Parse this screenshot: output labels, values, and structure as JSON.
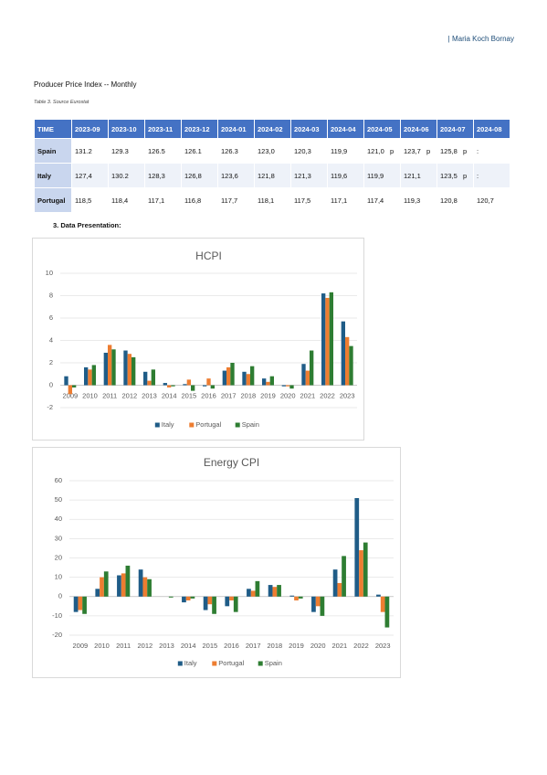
{
  "header": {
    "author": "| Maria Koch Bornay"
  },
  "title": "Producer Price Index -- Monthly",
  "caption": "Table 3. Source Eurostat",
  "table": {
    "columns": [
      "TIME",
      "2023-09",
      "2023-10",
      "2023-11",
      "2023-12",
      "2024-01",
      "2024-02",
      "2024-03",
      "2024-04",
      "2024-05",
      "2024-06",
      "2024-07",
      "2024-08"
    ],
    "rows": [
      {
        "label": "Spain",
        "cells": [
          "131.2",
          "129.3",
          "126.5",
          "126.1",
          "126.3",
          "123,0",
          "120,3",
          "119,9",
          {
            "value": "121,0",
            "flag": "p"
          },
          {
            "value": "123,7",
            "flag": "p"
          },
          {
            "value": "125,8",
            "flag": "p"
          },
          ":"
        ]
      },
      {
        "label": "Italy",
        "cells": [
          "127,4",
          "130.2",
          "128,3",
          "126,8",
          "123,6",
          "121,8",
          "121,3",
          "119,6",
          "119,9",
          "121,1",
          {
            "value": "123,5",
            "flag": "p"
          },
          ":"
        ]
      },
      {
        "label": "Portugal",
        "cells": [
          "118,5",
          "118,4",
          "117,1",
          "116,8",
          "117,7",
          "118,1",
          "117,5",
          "117,1",
          "117,4",
          "119,3",
          "120,8",
          "120,7"
        ]
      }
    ]
  },
  "section": "3.  Data Presentation:",
  "chart_data": [
    {
      "type": "bar",
      "title": "HCPI",
      "categories": [
        "2009",
        "2010",
        "2011",
        "2012",
        "2013",
        "2014",
        "2015",
        "2016",
        "2017",
        "2018",
        "2019",
        "2020",
        "2021",
        "2022",
        "2023"
      ],
      "series": [
        {
          "name": "Italy",
          "color": "#1f5c87",
          "values": [
            0.8,
            1.6,
            2.9,
            3.1,
            1.2,
            0.2,
            0.1,
            -0.1,
            1.3,
            1.2,
            0.6,
            -0.1,
            1.9,
            8.2,
            5.7
          ]
        },
        {
          "name": "Portugal",
          "color": "#ed7d31",
          "values": [
            -0.8,
            1.4,
            3.6,
            2.8,
            0.4,
            -0.2,
            0.5,
            0.6,
            1.6,
            1.0,
            0.3,
            -0.1,
            1.3,
            7.8,
            4.3
          ]
        },
        {
          "name": "Spain",
          "color": "#2e7d32",
          "values": [
            -0.2,
            1.8,
            3.2,
            2.5,
            1.4,
            -0.1,
            -0.5,
            -0.3,
            2.0,
            1.7,
            0.8,
            -0.3,
            3.1,
            8.3,
            3.5
          ]
        }
      ],
      "ylim": [
        -2,
        10
      ],
      "yticks": [
        -2,
        0,
        2,
        4,
        6,
        8,
        10
      ],
      "grid": true,
      "legend": "bottom"
    },
    {
      "type": "bar",
      "title": "Energy CPI",
      "categories": [
        "2009",
        "2010",
        "2011",
        "2012",
        "2013",
        "2014",
        "2015",
        "2016",
        "2017",
        "2018",
        "2019",
        "2020",
        "2021",
        "2022",
        "2023"
      ],
      "series": [
        {
          "name": "Italy",
          "color": "#1f5c87",
          "values": [
            -8,
            4,
            11,
            14,
            0,
            -3,
            -7,
            -5,
            4,
            6,
            0.5,
            -8,
            14,
            51,
            1
          ]
        },
        {
          "name": "Portugal",
          "color": "#ed7d31",
          "values": [
            -7,
            10,
            12,
            10,
            0,
            -2,
            -4,
            -2,
            3,
            5,
            -2,
            -5,
            7,
            24,
            -8
          ]
        },
        {
          "name": "Spain",
          "color": "#2e7d32",
          "values": [
            -9,
            13,
            16,
            9,
            -0.5,
            -1,
            -9,
            -8,
            8,
            6,
            -1,
            -10,
            21,
            28,
            -16
          ]
        }
      ],
      "ylim": [
        -20,
        60
      ],
      "yticks": [
        -20,
        -10,
        0,
        10,
        20,
        30,
        40,
        50,
        60
      ],
      "grid": true,
      "legend": "bottom"
    }
  ]
}
